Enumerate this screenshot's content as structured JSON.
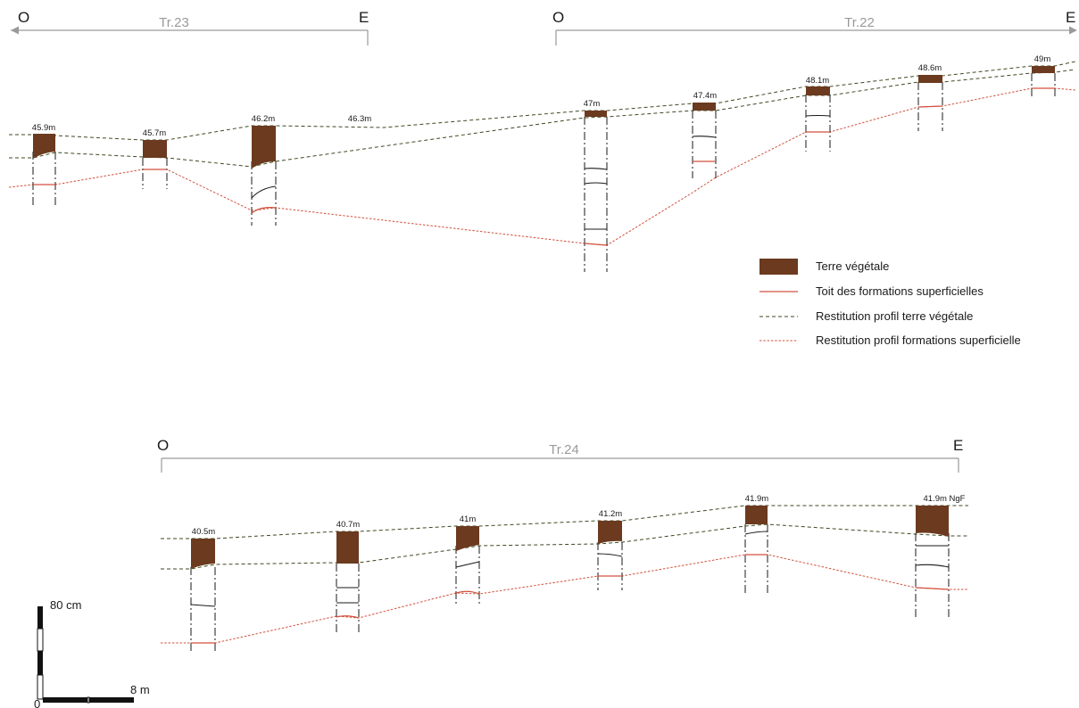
{
  "colors": {
    "terre_vegetale": "#6b3a1f",
    "toit_formations": "#d2503c",
    "profil_terre_vegetale": "#3d4a22",
    "profil_formations": "#d2503c",
    "axis": "#9a9a9a"
  },
  "transects": [
    {
      "id": "tr23",
      "label": "Tr.23",
      "west": "O",
      "east": "E",
      "altitudes": [
        "45.9m",
        "45.7m",
        "46.2m",
        "46.3m"
      ]
    },
    {
      "id": "tr22",
      "label": "Tr.22",
      "west": "O",
      "east": "E",
      "altitudes": [
        "47m",
        "47.4m",
        "48.1m",
        "48.6m",
        "49m"
      ]
    },
    {
      "id": "tr24",
      "label": "Tr.24",
      "west": "O",
      "east": "E",
      "altitudes": [
        "40.5m",
        "40.7m",
        "41m",
        "41.2m",
        "41.9m",
        "41.9m NgF"
      ]
    }
  ],
  "legend": [
    {
      "key": "terre_vegetale",
      "label": "Terre végétale"
    },
    {
      "key": "toit_formations",
      "label": "Toit des formations superficielles"
    },
    {
      "key": "profil_terre_vegetale",
      "label": "Restitution profil terre végétale"
    },
    {
      "key": "profil_formations",
      "label": "Restitution profil formations superficielle"
    }
  ],
  "scale": {
    "vertical_label": "80 cm",
    "horizontal_label": "8 m",
    "origin_label": "0"
  }
}
